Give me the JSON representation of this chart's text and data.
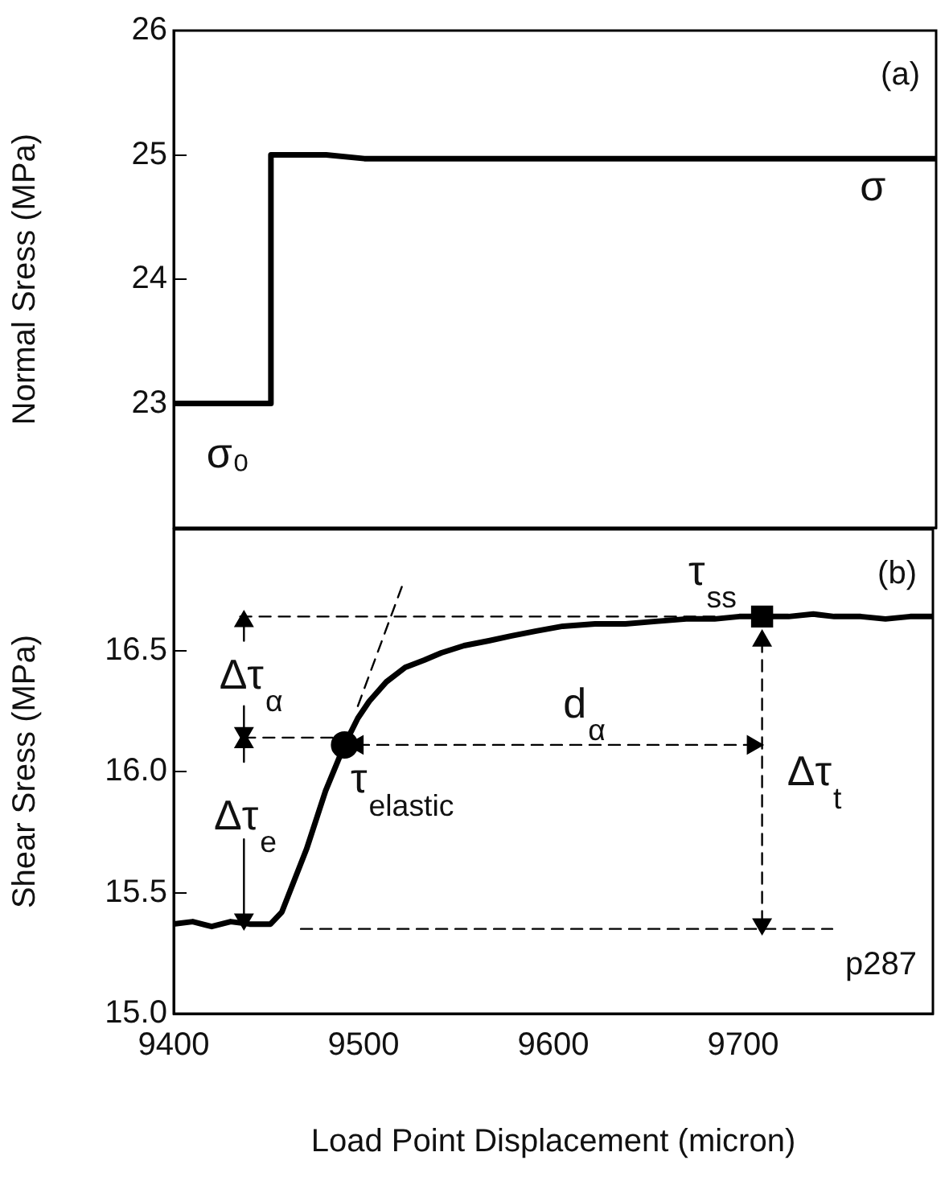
{
  "chart_data": [
    {
      "type": "line",
      "ylabel": "Normal Sress (MPa)",
      "xlim": [
        9400,
        9800
      ],
      "ylim": [
        22,
        26
      ],
      "yticks": [
        23,
        24,
        25,
        26
      ],
      "tick_labels": "y",
      "line_style": "solid",
      "x": [
        9400,
        9425,
        9451,
        9451,
        9480,
        9500,
        9600,
        9700,
        9800
      ],
      "values": [
        23,
        23,
        23,
        25,
        25,
        24.97,
        24.97,
        24.97,
        24.97
      ],
      "color": "#000000",
      "annotations": [
        "(a)",
        "σ₀",
        "σ"
      ]
    },
    {
      "type": "line",
      "ylabel": "Shear Sress (MPa)",
      "xlabel": "Load Point Displacement (micron)",
      "xlim": [
        9400,
        9800
      ],
      "ylim": [
        15,
        17
      ],
      "xticks": [
        9400,
        9500,
        9600,
        9700
      ],
      "yticks": [
        {
          "value": 15,
          "label": "15.0"
        },
        15.5,
        {
          "value": 16,
          "label": "16.0"
        },
        16.5
      ],
      "series": [
        {
          "color": "#000000",
          "line_style": "solid",
          "x": [
            9400,
            9410,
            9420,
            9430,
            9440,
            9451,
            9457,
            9470,
            9480,
            9490,
            9497,
            9503,
            9512,
            9522,
            9532,
            9541,
            9553,
            9566,
            9578,
            9591,
            9605,
            9622,
            9638,
            9654,
            9670,
            9685,
            9698,
            9710,
            9724,
            9737,
            9748,
            9762,
            9775,
            9788,
            9800
          ],
          "values": [
            15.37,
            15.38,
            15.36,
            15.38,
            15.37,
            15.37,
            15.42,
            15.68,
            15.92,
            16.11,
            16.22,
            16.29,
            16.37,
            16.43,
            16.46,
            16.49,
            16.52,
            16.54,
            16.56,
            16.58,
            16.6,
            16.61,
            16.61,
            16.62,
            16.63,
            16.63,
            16.64,
            16.64,
            16.64,
            16.65,
            16.64,
            16.64,
            16.63,
            16.64,
            16.64
          ]
        },
        {
          "type": "scatter",
          "color": "#000000",
          "marker": "circle",
          "x": [
            9490
          ],
          "values": [
            16.11
          ]
        },
        {
          "type": "scatter",
          "color": "#000000",
          "marker": "square",
          "x": [
            9710
          ],
          "values": [
            16.64
          ]
        },
        {
          "color": "#000000",
          "line_style": "dashed",
          "x": [
            9435,
            9710
          ],
          "values": [
            16.64,
            16.64
          ]
        },
        {
          "color": "#000000",
          "line_style": "dashed",
          "x": [
            9437,
            9487
          ],
          "values": [
            16.14,
            16.14
          ]
        },
        {
          "color": "#000000",
          "line_style": "dashed",
          "x": [
            9467,
            9747
          ],
          "values": [
            15.35,
            15.35
          ]
        },
        {
          "color": "#000000",
          "line_style": "dashed",
          "x": [
            9497,
            9521
          ],
          "values": [
            16.27,
            16.78
          ]
        },
        {
          "color": "#000000",
          "line_style": "dashed",
          "marker": "triangle",
          "x": [
            9497,
            9705
          ],
          "values": [
            16.11,
            16.11
          ]
        },
        {
          "color": "#000000",
          "line_style": "dashed",
          "marker": "triangle",
          "x": [
            9710,
            9710
          ],
          "values": [
            16.54,
            15.37
          ]
        },
        {
          "color": "#000000",
          "line_style": "solid",
          "marker": "triangle",
          "x": [
            9437,
            9437,
            9437,
            9437
          ],
          "values": [
            16.62,
            16.54,
            16.27,
            16.16
          ]
        },
        {
          "color": "#000000",
          "line_style": "solid",
          "marker": "triangle",
          "x": [
            9437,
            9437,
            9437,
            9437
          ],
          "values": [
            16.12,
            16.04,
            15.72,
            15.39
          ]
        }
      ],
      "annotations": [
        "(b)",
        "p287",
        "τ$_{ss}$",
        "Δτ$_{α}$",
        "Δτ$_{e}$",
        "τ$_{elastic}$",
        "d$_{α}$",
        "Δτ$_{t}$"
      ]
    }
  ]
}
